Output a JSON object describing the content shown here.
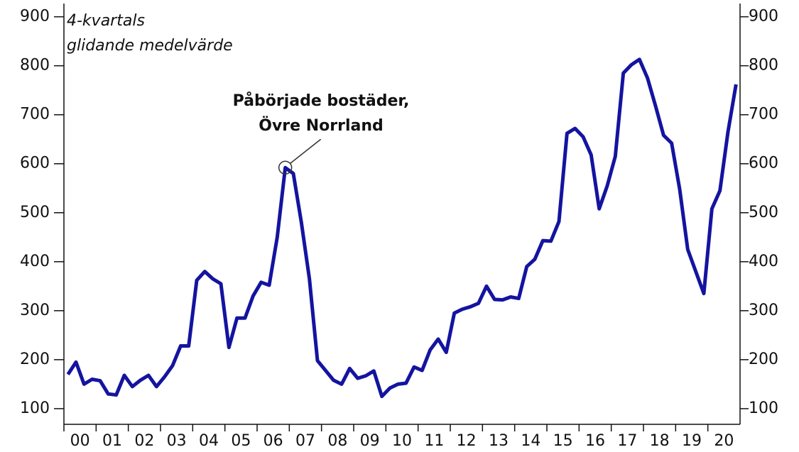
{
  "chart_data": {
    "type": "line",
    "subtitle": [
      "4-kvartals",
      "glidande medelvärde"
    ],
    "annotation": {
      "text": [
        "Påbörjade bostäder,",
        "Övre Norrland"
      ],
      "x": 2006.875,
      "y": 592
    },
    "x": [
      2000.125,
      2000.375,
      2000.625,
      2000.875,
      2001.125,
      2001.375,
      2001.625,
      2001.875,
      2002.125,
      2002.375,
      2002.625,
      2002.875,
      2003.125,
      2003.375,
      2003.625,
      2003.875,
      2004.125,
      2004.375,
      2004.625,
      2004.875,
      2005.125,
      2005.375,
      2005.625,
      2005.875,
      2006.125,
      2006.375,
      2006.625,
      2006.875,
      2007.125,
      2007.375,
      2007.625,
      2007.875,
      2008.125,
      2008.375,
      2008.625,
      2008.875,
      2009.125,
      2009.375,
      2009.625,
      2009.875,
      2010.125,
      2010.375,
      2010.625,
      2010.875,
      2011.125,
      2011.375,
      2011.625,
      2011.875,
      2012.125,
      2012.375,
      2012.625,
      2012.875,
      2013.125,
      2013.375,
      2013.625,
      2013.875,
      2014.125,
      2014.375,
      2014.625,
      2014.875,
      2015.125,
      2015.375,
      2015.625,
      2015.875,
      2016.125,
      2016.375,
      2016.625,
      2016.875,
      2017.125,
      2017.375,
      2017.625,
      2017.875,
      2018.125,
      2018.375,
      2018.625,
      2018.875,
      2019.125,
      2019.375,
      2019.625,
      2019.875,
      2020.125,
      2020.375,
      2020.625,
      2020.875
    ],
    "series": [
      {
        "name": "Påbörjade bostäder, Övre Norrland",
        "color": "#1414a0",
        "values": [
          170,
          195,
          150,
          160,
          157,
          130,
          128,
          168,
          145,
          158,
          168,
          145,
          165,
          188,
          228,
          228,
          362,
          380,
          365,
          355,
          225,
          285,
          285,
          330,
          358,
          352,
          450,
          592,
          580,
          480,
          365,
          198,
          178,
          158,
          150,
          182,
          162,
          167,
          177,
          125,
          142,
          150,
          152,
          185,
          178,
          220,
          242,
          215,
          295,
          303,
          308,
          315,
          350,
          323,
          322,
          328,
          325,
          390,
          405,
          443,
          442,
          482,
          662,
          672,
          655,
          618,
          508,
          555,
          615,
          785,
          802,
          813,
          775,
          718,
          658,
          642,
          548,
          425,
          380,
          335,
          508,
          545,
          665,
          762
        ]
      }
    ],
    "xlim": [
      2000,
      2021
    ],
    "xticks": [
      {
        "value": 2000.5,
        "label": "00"
      },
      {
        "value": 2001.5,
        "label": "01"
      },
      {
        "value": 2002.5,
        "label": "02"
      },
      {
        "value": 2003.5,
        "label": "03"
      },
      {
        "value": 2004.5,
        "label": "04"
      },
      {
        "value": 2005.5,
        "label": "05"
      },
      {
        "value": 2006.5,
        "label": "06"
      },
      {
        "value": 2007.5,
        "label": "07"
      },
      {
        "value": 2008.5,
        "label": "08"
      },
      {
        "value": 2009.5,
        "label": "09"
      },
      {
        "value": 2010.5,
        "label": "10"
      },
      {
        "value": 2011.5,
        "label": "11"
      },
      {
        "value": 2012.5,
        "label": "12"
      },
      {
        "value": 2013.5,
        "label": "13"
      },
      {
        "value": 2014.5,
        "label": "14"
      },
      {
        "value": 2015.5,
        "label": "15"
      },
      {
        "value": 2016.5,
        "label": "16"
      },
      {
        "value": 2017.5,
        "label": "17"
      },
      {
        "value": 2018.5,
        "label": "18"
      },
      {
        "value": 2019.5,
        "label": "19"
      },
      {
        "value": 2020.5,
        "label": "20"
      }
    ],
    "ylim": [
      68,
      927
    ],
    "yticks": [
      100,
      200,
      300,
      400,
      500,
      600,
      700,
      800,
      900
    ],
    "y2lim": [
      68,
      927
    ],
    "y2ticks": [
      100,
      200,
      300,
      400,
      500,
      600,
      700,
      800,
      900
    ],
    "grid": false
  }
}
